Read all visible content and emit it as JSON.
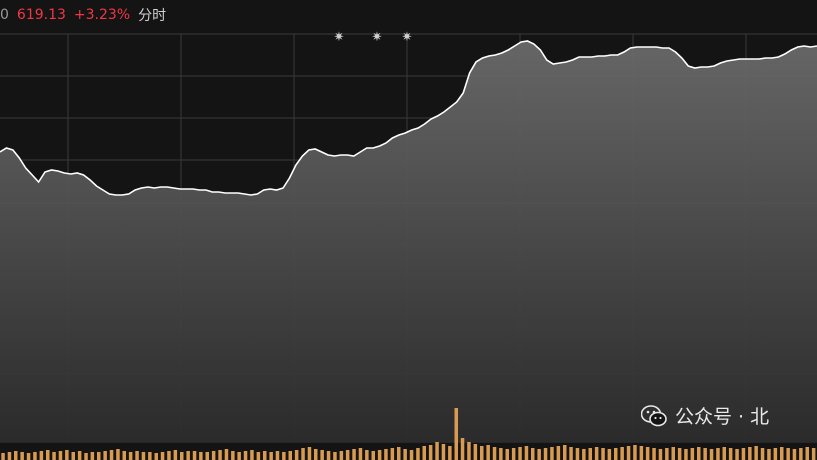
{
  "header": {
    "prev_value_fragment": "0",
    "last_value": "619.13",
    "change_pct": "+3.23%",
    "mode_label": "分时",
    "colors": {
      "up": "#f23645",
      "label": "#d0d0d0",
      "prev": "#9a9a9a"
    }
  },
  "watermark": {
    "text": "公众号 · 北",
    "icon": "wechat-icon"
  },
  "chart_data": {
    "type": "line",
    "series": [
      {
        "values": [
          152,
          148,
          150,
          158,
          168,
          175,
          182,
          172,
          170,
          171,
          173,
          174,
          173,
          175,
          180,
          186,
          190,
          194,
          195,
          195,
          194,
          190,
          188,
          187,
          188,
          187,
          187,
          188,
          189,
          189,
          189,
          190,
          190,
          192,
          192,
          193,
          193,
          193,
          194,
          195,
          194,
          190,
          189,
          190,
          188,
          178,
          165,
          156,
          150,
          149,
          152,
          155,
          156,
          155,
          155,
          156,
          152,
          148,
          148,
          146,
          143,
          138,
          135,
          133,
          130,
          128,
          124,
          119,
          116,
          112,
          107,
          102,
          93,
          73,
          62,
          58,
          56,
          55,
          53,
          50,
          46,
          42,
          41,
          44,
          50,
          60,
          64,
          63,
          62,
          60,
          57,
          57,
          57,
          56,
          56,
          55,
          55,
          52,
          48,
          47,
          47,
          47,
          47,
          48,
          48,
          52,
          58,
          66,
          68,
          67,
          67,
          66,
          63,
          61,
          60,
          59,
          59,
          59,
          59,
          58,
          58,
          57,
          54,
          50,
          47,
          46,
          47,
          46
        ],
        "color": "#ffffff"
      }
    ],
    "volume": [
      7,
      8,
      9,
      8,
      7,
      8,
      9,
      10,
      8,
      9,
      10,
      8,
      9,
      7,
      8,
      8,
      9,
      10,
      11,
      9,
      8,
      9,
      8,
      8,
      7,
      8,
      9,
      10,
      8,
      9,
      9,
      8,
      8,
      9,
      10,
      11,
      9,
      8,
      9,
      10,
      8,
      9,
      8,
      9,
      8,
      9,
      10,
      12,
      13,
      11,
      10,
      9,
      8,
      9,
      10,
      11,
      12,
      10,
      9,
      10,
      11,
      12,
      13,
      11,
      10,
      12,
      14,
      15,
      18,
      16,
      14,
      52,
      22,
      18,
      16,
      14,
      15,
      13,
      12,
      11,
      12,
      13,
      14,
      12,
      11,
      12,
      13,
      14,
      15,
      13,
      12,
      11,
      12,
      13,
      12,
      11,
      12,
      13,
      14,
      15,
      14,
      13,
      12,
      11,
      12,
      13,
      12,
      11,
      12,
      13,
      12,
      11,
      12,
      13,
      12,
      11,
      12,
      13,
      14,
      12,
      11,
      12,
      13,
      12,
      11,
      12,
      13,
      12
    ],
    "volume_color": "#d99a52",
    "stars": 3,
    "grid": true
  }
}
